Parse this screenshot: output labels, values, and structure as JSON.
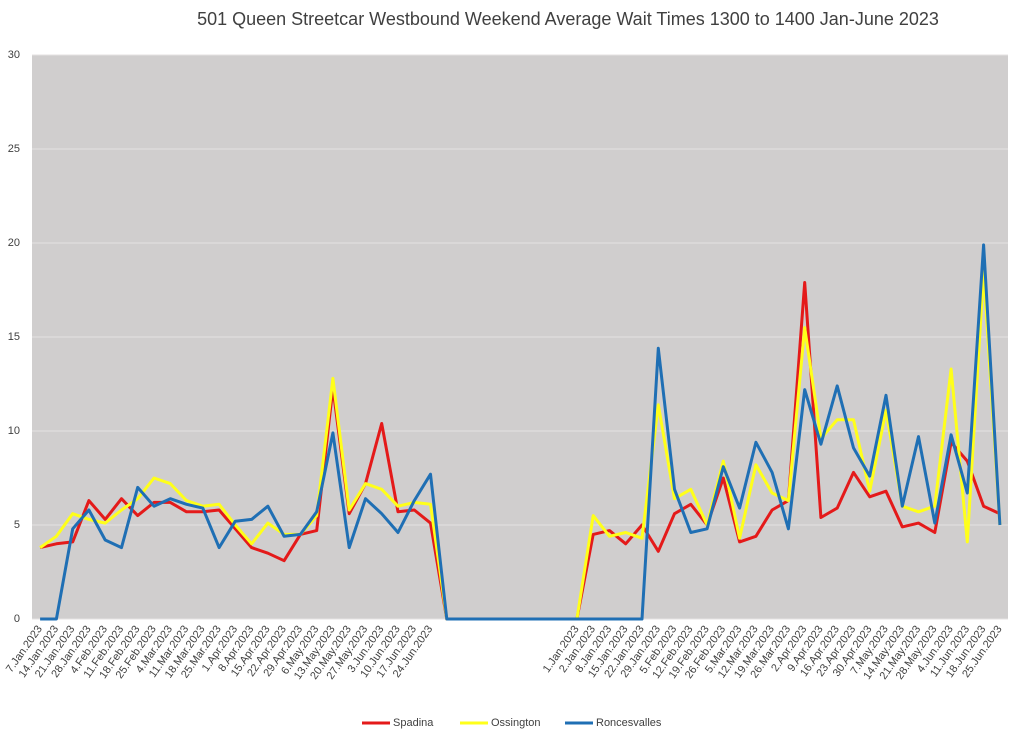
{
  "chart_data": {
    "type": "line",
    "title": "501 Queen Streetcar Westbound Weekend Average Wait Times 1300 to 1400 Jan-June 2023",
    "categories": [
      "7.Jan.2023",
      "14.Jan.2023",
      "21.Jan.2023",
      "28.Jan.2023",
      "4.Feb.2023",
      "11.Feb.2023",
      "18.Feb.2023",
      "25.Feb.2023",
      "4.Mar.2023",
      "11.Mar.2023",
      "18.Mar.2023",
      "25.Mar.2023",
      "1.Apr.2023",
      "8.Apr.2023",
      "15.Apr.2023",
      "22.Apr.2023",
      "29.Apr.2023",
      "6.May.2023",
      "13.May.2023",
      "20.May.2023",
      "27.May.2023",
      "3.Jun.2023",
      "10.Jun.2023",
      "17.Jun.2023",
      "24.Jun.2023",
      null,
      null,
      null,
      null,
      null,
      null,
      null,
      null,
      "1.Jan.2023",
      "2.Jan.2023",
      "8.Jan.2023",
      "15.Jan.2023",
      "22.Jan.2023",
      "29.Jan.2023",
      "5.Feb.2023",
      "12.Feb.2023",
      "19.Feb.2023",
      "26.Feb.2023",
      "5.Mar.2023",
      "12.Mar.2023",
      "19.Mar.2023",
      "26.Mar.2023",
      "2.Apr.2023",
      "9.Apr.2023",
      "16.Apr.2023",
      "23.Apr.2023",
      "30.Apr.2023",
      "7.May.2023",
      "14.May.2023",
      "21.May.2023",
      "28.May.2023",
      "4.Jun.2023",
      "11.Jun.2023",
      "18.Jun.2023",
      "25.Jun.2023"
    ],
    "series": [
      {
        "name": "Spadina",
        "color": "#e41a1a",
        "values": [
          3.8,
          4.0,
          4.1,
          6.3,
          5.3,
          6.4,
          5.5,
          6.2,
          6.2,
          5.7,
          5.7,
          5.8,
          4.8,
          3.8,
          3.5,
          3.1,
          4.5,
          4.7,
          12.3,
          5.6,
          7.2,
          10.4,
          5.7,
          5.8,
          5.1,
          0,
          0,
          0,
          0,
          0,
          0,
          0,
          0,
          0,
          4.5,
          4.7,
          4.0,
          5.0,
          3.6,
          5.6,
          6.1,
          5.0,
          7.5,
          4.1,
          4.4,
          5.8,
          6.3,
          17.9,
          5.4,
          5.9,
          7.8,
          6.5,
          6.8,
          4.9,
          5.1,
          4.6,
          9.4,
          8.4,
          6.0,
          5.6
        ]
      },
      {
        "name": "Ossington",
        "color": "#ffff1a",
        "values": [
          3.8,
          4.4,
          5.6,
          5.3,
          5.1,
          5.8,
          6.4,
          7.5,
          7.2,
          6.3,
          6.0,
          6.1,
          5.0,
          4.0,
          5.1,
          4.5,
          4.5,
          5.5,
          12.8,
          5.8,
          7.2,
          6.9,
          6.0,
          6.2,
          6.1,
          0,
          0,
          0,
          0,
          0,
          0,
          0,
          0,
          0,
          5.5,
          4.4,
          4.6,
          4.3,
          11.4,
          6.4,
          6.9,
          5.0,
          8.4,
          4.3,
          8.2,
          6.7,
          6.3,
          15.5,
          9.6,
          10.6,
          10.6,
          6.8,
          11.1,
          6.0,
          5.7,
          6.0,
          13.3,
          4.1,
          18.5,
          5.0
        ]
      },
      {
        "name": "Roncesvalles",
        "color": "#1f6fb4",
        "values": [
          0,
          0,
          4.8,
          5.8,
          4.2,
          3.8,
          7.0,
          6.0,
          6.4,
          6.1,
          5.9,
          3.8,
          5.2,
          5.3,
          6.0,
          4.4,
          4.5,
          5.7,
          9.9,
          3.8,
          6.4,
          5.6,
          4.6,
          6.3,
          7.7,
          0,
          0,
          0,
          0,
          0,
          0,
          0,
          0,
          0,
          0,
          0,
          0,
          0,
          14.4,
          6.9,
          4.6,
          4.8,
          8.1,
          5.9,
          9.4,
          7.8,
          4.8,
          12.2,
          9.3,
          12.4,
          9.1,
          7.6,
          11.9,
          6.0,
          9.7,
          5.1,
          9.8,
          6.7,
          19.9,
          5.0
        ]
      }
    ],
    "ylim": [
      0,
      30
    ],
    "yticks": [
      0,
      5,
      10,
      15,
      20,
      25,
      30
    ],
    "grid": true,
    "legend": "bottom",
    "plot_background": "#d0cece"
  }
}
